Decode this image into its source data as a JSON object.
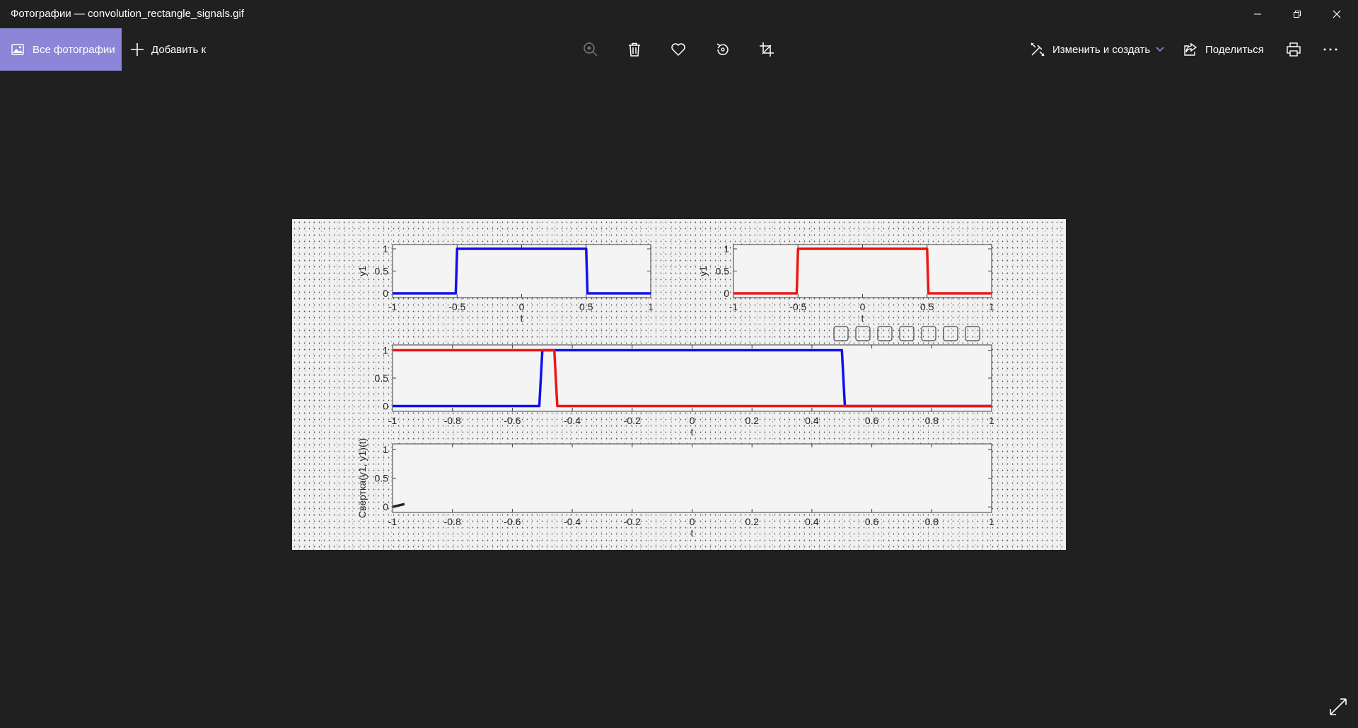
{
  "window": {
    "title": "Фотографии — convolution_rectangle_signals.gif",
    "minimize_icon": "minimize-icon",
    "maximize_icon": "restore-icon",
    "close_icon": "close-icon"
  },
  "toolbar": {
    "all_photos_label": "Все фотографии",
    "add_to_label": "Добавить к",
    "edit_create_label": "Изменить и создать",
    "share_label": "Поделиться",
    "icons": [
      "zoom-icon",
      "delete-icon",
      "favorite-icon",
      "rotate-icon",
      "crop-icon",
      "print-icon",
      "more-icon"
    ]
  },
  "colors": {
    "accent": "#8b86d8",
    "background": "#202020",
    "series_blue": "#1010ee",
    "series_red": "#ee1515"
  },
  "chart_data": [
    {
      "type": "line",
      "xlabel": "t",
      "ylabel": "y1",
      "xlim": [
        -1,
        1
      ],
      "ylim": [
        0,
        1
      ],
      "xticks": [
        "-1",
        "-0.5",
        "0",
        "0.5",
        "1"
      ],
      "yticks": [
        "0",
        "0.5",
        "1"
      ],
      "series": [
        {
          "color": "#1010ee",
          "x": [
            -1,
            -0.51,
            -0.5,
            0.5,
            0.51,
            1
          ],
          "y": [
            0,
            0,
            1,
            1,
            0,
            0
          ]
        }
      ]
    },
    {
      "type": "line",
      "xlabel": "t",
      "ylabel": "y1",
      "xlim": [
        -1,
        1
      ],
      "ylim": [
        0,
        1
      ],
      "xticks": [
        "-1",
        "-0.5",
        "0",
        "0.5",
        "1"
      ],
      "yticks": [
        "0",
        "0.5",
        "1"
      ],
      "series": [
        {
          "color": "#ee1515",
          "x": [
            -1,
            -0.51,
            -0.5,
            0.5,
            0.51,
            1
          ],
          "y": [
            0,
            0,
            1,
            1,
            0,
            0
          ]
        }
      ]
    },
    {
      "type": "line",
      "xlabel": "t",
      "ylabel": "",
      "xlim": [
        -1,
        1
      ],
      "ylim": [
        0,
        1
      ],
      "xticks": [
        "-1",
        "-0.8",
        "-0.6",
        "-0.4",
        "-0.2",
        "0",
        "0.2",
        "0.4",
        "0.6",
        "0.8",
        "1"
      ],
      "yticks": [
        "0",
        "0.5",
        "1"
      ],
      "series": [
        {
          "color": "#1010ee",
          "x": [
            -1,
            -0.51,
            -0.5,
            0.5,
            0.51,
            1
          ],
          "y": [
            0,
            0,
            1,
            1,
            0,
            0
          ]
        },
        {
          "color": "#ee1515",
          "x": [
            -1,
            -0.46,
            -0.45,
            1
          ],
          "y": [
            1,
            1,
            0,
            0
          ]
        }
      ],
      "toolbar_icons": [
        "brush-icon",
        "data-tips-icon",
        "link-icon",
        "pan-icon",
        "zoom-in-icon",
        "zoom-out-icon",
        "home-icon"
      ]
    },
    {
      "type": "line",
      "xlabel": "t",
      "ylabel": "Свёртка(y1, y1)(t)",
      "xlim": [
        -1,
        1
      ],
      "ylim": [
        0,
        1
      ],
      "xticks": [
        "-1",
        "-0.8",
        "-0.6",
        "-0.4",
        "-0.2",
        "0",
        "0.2",
        "0.4",
        "0.6",
        "0.8",
        "1"
      ],
      "yticks": [
        "0",
        "0.5",
        "1"
      ],
      "series": [
        {
          "color": "#222222",
          "x": [
            -1,
            -0.96
          ],
          "y": [
            0.0,
            0.05
          ]
        }
      ]
    }
  ]
}
